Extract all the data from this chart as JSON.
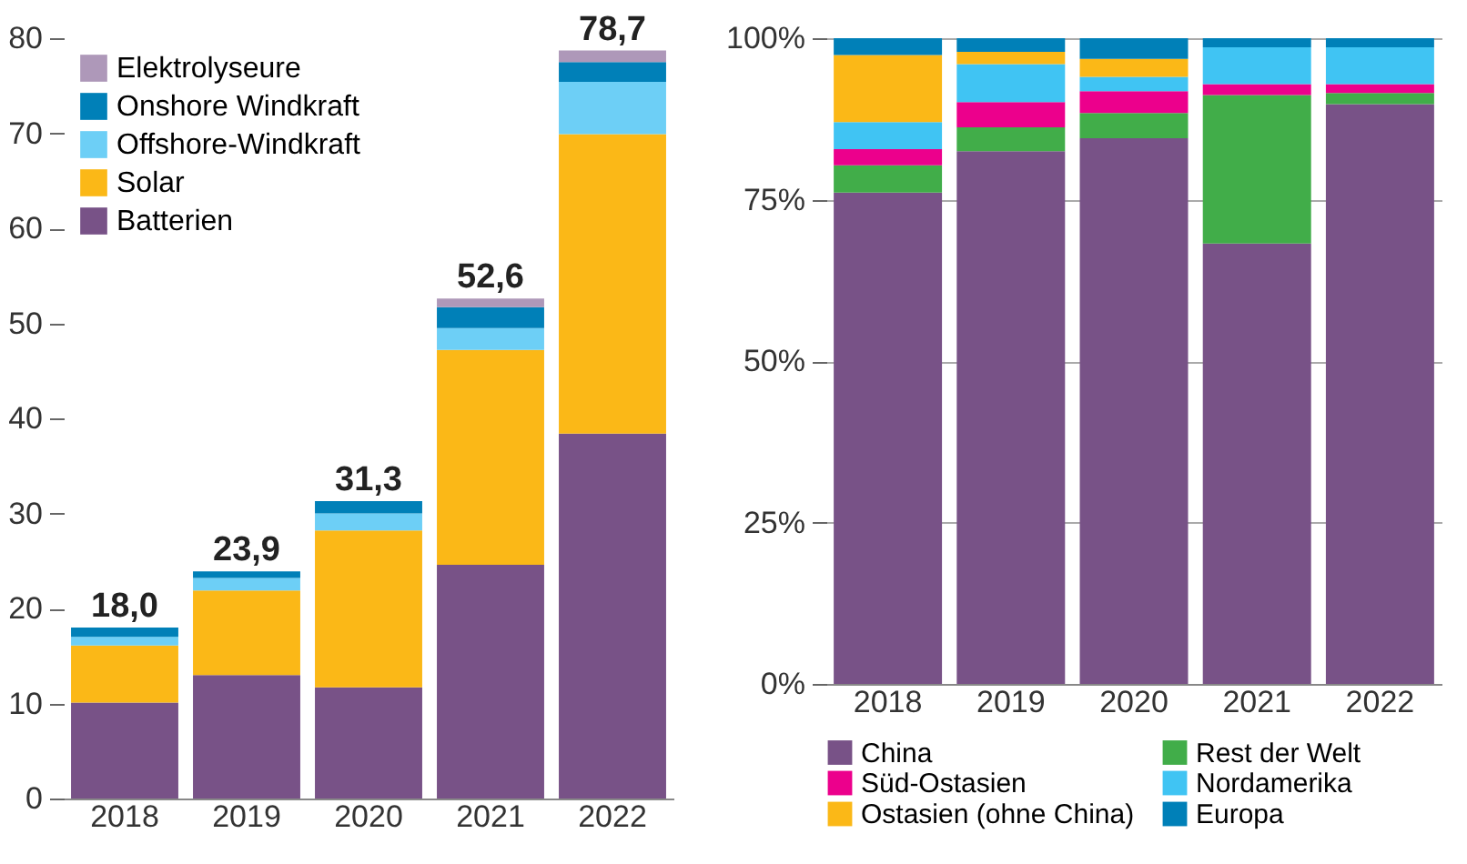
{
  "chart_data": [
    {
      "type": "bar",
      "stacked": true,
      "categories": [
        "2018",
        "2019",
        "2020",
        "2021",
        "2022"
      ],
      "series": [
        {
          "name": "Batterien",
          "color": "#785287",
          "values": [
            10.1,
            13.0,
            11.7,
            24.6,
            38.4
          ]
        },
        {
          "name": "Solar",
          "color": "#fbb817",
          "values": [
            6.0,
            8.9,
            16.5,
            22.6,
            31.5
          ]
        },
        {
          "name": "Offshore-Windkraft",
          "color": "#6dcff6",
          "values": [
            0.9,
            1.3,
            1.8,
            2.3,
            5.5
          ]
        },
        {
          "name": "Onshore Windkraft",
          "color": "#0080b8",
          "values": [
            1.0,
            0.7,
            1.3,
            2.2,
            2.1
          ]
        },
        {
          "name": "Elektrolyseure",
          "color": "#ae98b9",
          "values": [
            0,
            0,
            0,
            0.9,
            1.2
          ]
        }
      ],
      "totals": [
        "18,0",
        "23,9",
        "31,3",
        "52,6",
        "78,7"
      ],
      "ylim": [
        0,
        80
      ],
      "yticks": [
        0,
        10,
        20,
        30,
        40,
        50,
        60,
        70,
        80
      ],
      "grid": false,
      "legend": "top left"
    },
    {
      "type": "bar",
      "stacked": true,
      "categories": [
        "2018",
        "2019",
        "2020",
        "2021",
        "2022"
      ],
      "series": [
        {
          "name": "China",
          "color": "#785287",
          "values": [
            76.1,
            82.5,
            84.5,
            68.2,
            89.8
          ]
        },
        {
          "name": "Rest der Welt",
          "color": "#41ad49",
          "values": [
            4.2,
            3.7,
            3.9,
            23.0,
            1.7
          ]
        },
        {
          "name": "Süd-Ostasien",
          "color": "#ec008c",
          "values": [
            2.5,
            3.9,
            3.4,
            1.7,
            1.4
          ]
        },
        {
          "name": "Nordamerika",
          "color": "#40c4f3",
          "values": [
            4.2,
            5.9,
            2.2,
            5.7,
            5.7
          ]
        },
        {
          "name": "Ostasien (ohne China)",
          "color": "#fbb817",
          "values": [
            10.4,
            1.9,
            2.8,
            0,
            0
          ]
        },
        {
          "name": "Europa",
          "color": "#0080b8",
          "values": [
            2.6,
            2.1,
            3.2,
            1.4,
            1.4
          ]
        }
      ],
      "ylim": [
        0,
        100
      ],
      "yticks": [
        {
          "value": 0,
          "label": "0%"
        },
        {
          "value": 25,
          "label": "25%"
        },
        {
          "value": 50,
          "label": "50%"
        },
        {
          "value": 75,
          "label": "75%"
        },
        {
          "value": 100,
          "label": "100%"
        }
      ],
      "grid": "y",
      "legend": "bottom"
    }
  ]
}
